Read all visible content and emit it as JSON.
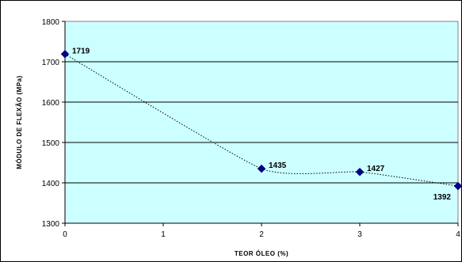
{
  "chart_data": {
    "type": "line",
    "xlabel": "TEOR ÓLEO (%)",
    "ylabel": "MÓDULO DE FLEXÃO (MPa)",
    "xlim": [
      0,
      4
    ],
    "ylim": [
      1300,
      1800
    ],
    "xticks": [
      "0",
      "1",
      "2",
      "3",
      "4"
    ],
    "yticks": [
      "1300",
      "1400",
      "1500",
      "1600",
      "1700",
      "1800"
    ],
    "series": [
      {
        "x": [
          0,
          2,
          3,
          4
        ],
        "values": [
          1719,
          1435,
          1427,
          1392
        ],
        "labels": [
          "1719",
          "1435",
          "1427",
          "1392"
        ]
      }
    ],
    "line_style": "dotted smoothed",
    "marker": "diamond",
    "colors": {
      "plot_background": "#ccffff",
      "marker": "#000080",
      "line": "#000000"
    },
    "grid": "horizontal",
    "legend": "none"
  }
}
